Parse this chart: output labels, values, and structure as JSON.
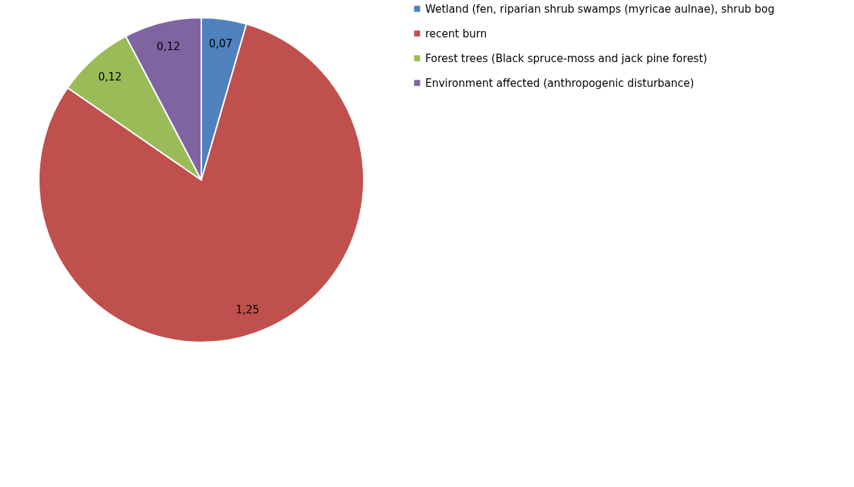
{
  "chart_data": {
    "type": "pie",
    "categories": [
      "Wetland (fen, riparian shrub swamps (myricae aulnae), shrub bog",
      "recent burn",
      "Forest trees (Black spruce-moss and jack pine forest)",
      "Environment affected (anthropogenic disturbance)"
    ],
    "values": [
      0.07,
      1.25,
      0.12,
      0.12
    ],
    "value_labels": [
      "0,07",
      "1,25",
      "0,12",
      "0,12"
    ],
    "colors": [
      "#4f81bd",
      "#c0504d",
      "#9bbb59",
      "#8064a2"
    ],
    "legend": "right"
  }
}
